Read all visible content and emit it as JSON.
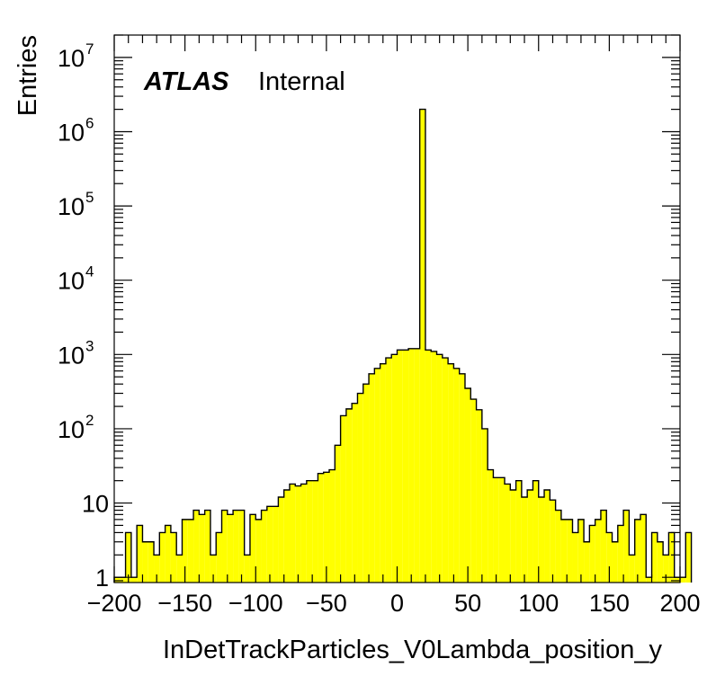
{
  "chart_data": {
    "type": "histogram",
    "title": "",
    "atlas_label": "ATLAS",
    "status_label": "Internal",
    "xlabel": "InDetTrackParticles_V0Lambda_position_y",
    "ylabel": "Entries",
    "xlim": [
      -200,
      200
    ],
    "ylim": [
      0.85,
      20000000
    ],
    "y_scale": "log",
    "fill_color": "#ffff00",
    "line_color": "#000000",
    "x_ticks": [
      -200,
      -150,
      -100,
      -50,
      0,
      50,
      100,
      150,
      200
    ],
    "x_tick_labels": [
      "−200",
      "−150",
      "−100",
      "−50",
      "0",
      "50",
      "100",
      "150",
      "200"
    ],
    "y_ticks": [
      {
        "value": 1,
        "base": "1",
        "exp": ""
      },
      {
        "value": 10,
        "base": "10",
        "exp": ""
      },
      {
        "value": 100,
        "base": "10",
        "exp": "2"
      },
      {
        "value": 1000,
        "base": "10",
        "exp": "3"
      },
      {
        "value": 10000,
        "base": "10",
        "exp": "4"
      },
      {
        "value": 100000,
        "base": "10",
        "exp": "5"
      },
      {
        "value": 1000000,
        "base": "10",
        "exp": "6"
      },
      {
        "value": 10000000,
        "base": "10",
        "exp": "7"
      }
    ],
    "bin_edges_start": -200,
    "bin_width": 4,
    "counts": [
      1,
      1,
      4,
      1,
      5,
      3,
      3,
      2,
      4,
      5,
      4,
      2,
      6,
      6,
      8,
      7,
      8,
      2,
      4,
      8,
      7,
      8,
      8,
      2,
      7,
      6,
      8,
      9,
      9,
      12,
      15,
      18,
      17,
      18,
      20,
      20,
      25,
      26,
      28,
      60,
      150,
      185,
      220,
      300,
      400,
      550,
      650,
      750,
      900,
      1000,
      1150,
      1150,
      1200,
      1200,
      2000000,
      1150,
      1100,
      1000,
      900,
      750,
      650,
      550,
      350,
      250,
      180,
      100,
      28,
      22,
      22,
      18,
      15,
      20,
      12,
      15,
      20,
      12,
      15,
      11,
      8,
      6,
      6,
      4,
      6,
      3,
      5,
      6,
      8,
      4,
      3,
      5,
      8,
      2,
      6,
      7,
      1,
      4,
      3,
      2,
      4,
      1,
      1,
      4
    ]
  }
}
